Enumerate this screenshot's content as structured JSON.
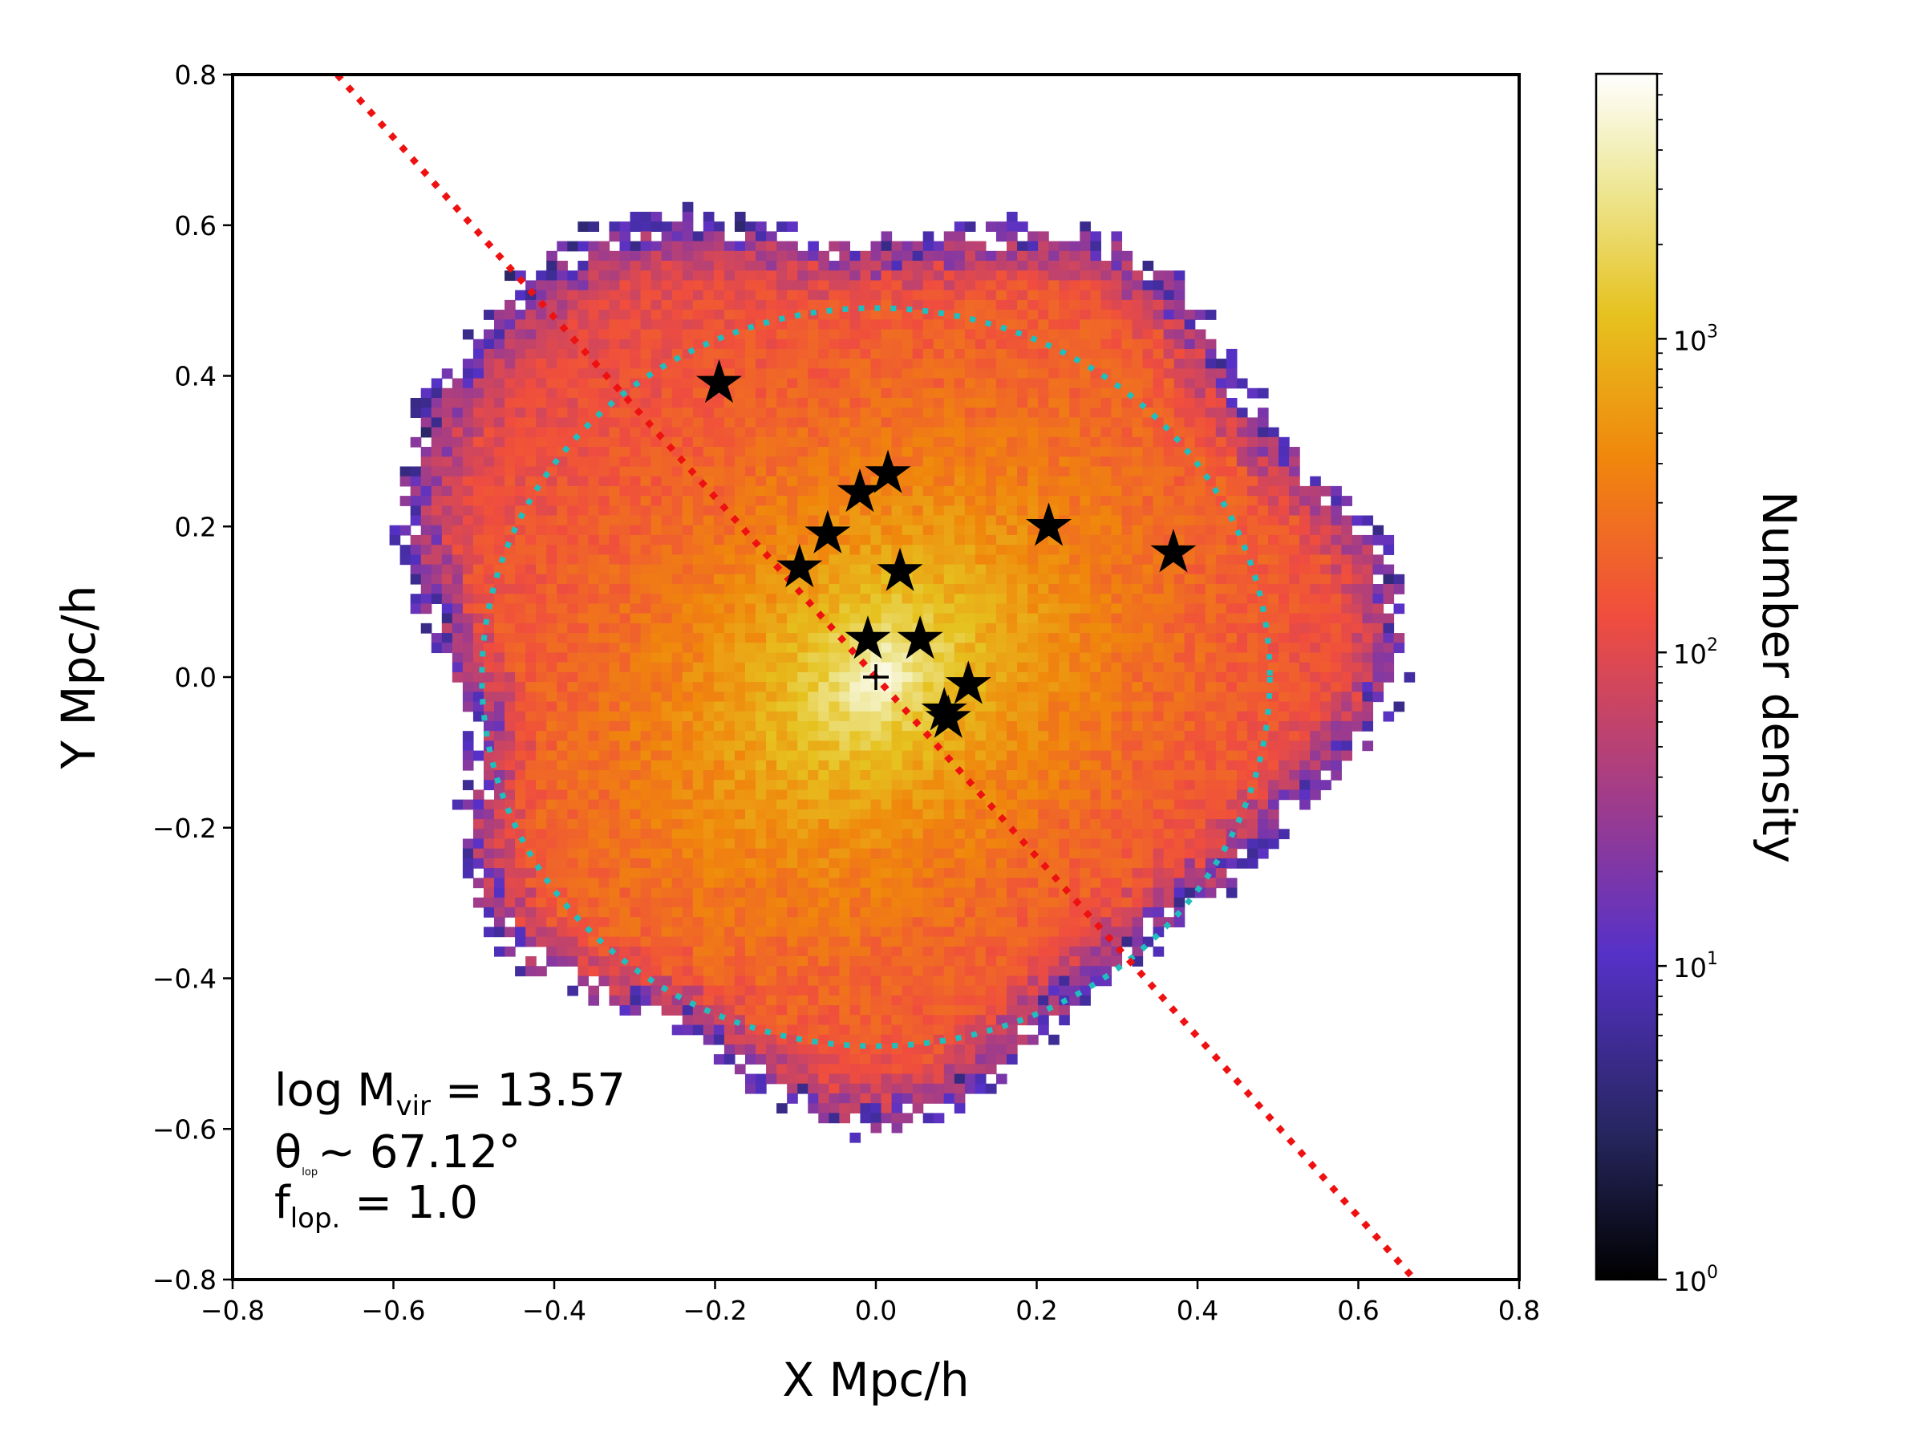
{
  "chart_data": {
    "type": "heatmap",
    "title": "",
    "xlabel": "X Mpc/h",
    "ylabel": "Y Mpc/h",
    "xlim": [
      -0.8,
      0.8
    ],
    "ylim": [
      -0.8,
      0.8
    ],
    "xticks": [
      -0.8,
      -0.6,
      -0.4,
      -0.2,
      0.0,
      0.2,
      0.4,
      0.6,
      0.8
    ],
    "xtick_labels": [
      "−0.8",
      "−0.6",
      "−0.4",
      "−0.2",
      "0.0",
      "0.2",
      "0.4",
      "0.6",
      "0.8"
    ],
    "yticks": [
      0.8,
      0.6,
      0.4,
      0.2,
      0.0,
      -0.2,
      -0.4,
      -0.6,
      -0.8
    ],
    "ytick_labels": [
      "0.8",
      "0.6",
      "0.4",
      "0.2",
      "0.0",
      "−0.2",
      "−0.4",
      "−0.6",
      "−0.8"
    ],
    "colorbar": {
      "label": "Number density",
      "scale": "log",
      "range": [
        1,
        7000
      ],
      "colormap": "CMRmap-like (black-purple-red-orange-yellow-white)",
      "ticks": [
        {
          "value": 1,
          "base": "10",
          "exp": "0"
        },
        {
          "value": 10,
          "base": "10",
          "exp": "1"
        },
        {
          "value": 100,
          "base": "10",
          "exp": "2"
        },
        {
          "value": 1000,
          "base": "10",
          "exp": "3"
        }
      ]
    },
    "density_field": {
      "center": [
        0.0,
        0.0
      ],
      "peak_density": 7000,
      "core_major_axis_angle_deg": 45,
      "approx_extent_x": [
        -0.66,
        0.65
      ],
      "approx_extent_y": [
        -0.58,
        0.64
      ]
    },
    "virial_circle": {
      "center": [
        0.0,
        0.0
      ],
      "radius": 0.49,
      "color": "#1fbfbf",
      "style": "dotted"
    },
    "los_line": {
      "points": [
        [
          -0.67,
          0.8
        ],
        [
          0.67,
          -0.8
        ]
      ],
      "color": "#ee1111",
      "style": "dotted"
    },
    "center_marker": {
      "x": 0.0,
      "y": 0.0,
      "symbol": "+"
    },
    "galaxies": [
      {
        "x": -0.195,
        "y": 0.39
      },
      {
        "x": 0.015,
        "y": 0.27
      },
      {
        "x": -0.02,
        "y": 0.245
      },
      {
        "x": -0.06,
        "y": 0.19
      },
      {
        "x": -0.095,
        "y": 0.145
      },
      {
        "x": 0.03,
        "y": 0.14
      },
      {
        "x": 0.215,
        "y": 0.2
      },
      {
        "x": 0.37,
        "y": 0.165
      },
      {
        "x": -0.01,
        "y": 0.05
      },
      {
        "x": 0.055,
        "y": 0.05
      },
      {
        "x": 0.115,
        "y": -0.01
      },
      {
        "x": 0.085,
        "y": -0.045
      },
      {
        "x": 0.09,
        "y": -0.055
      }
    ],
    "annotations": {
      "line1_main": "log M",
      "line1_sub": "vir",
      "line1_value": " = 13.57",
      "line2_symbol": "θ",
      "line2_sub": "lop",
      "line2_value": "~ 67.12°",
      "line3_main": "f",
      "line3_sub": "lop.",
      "line3_value": " = 1.0"
    }
  }
}
